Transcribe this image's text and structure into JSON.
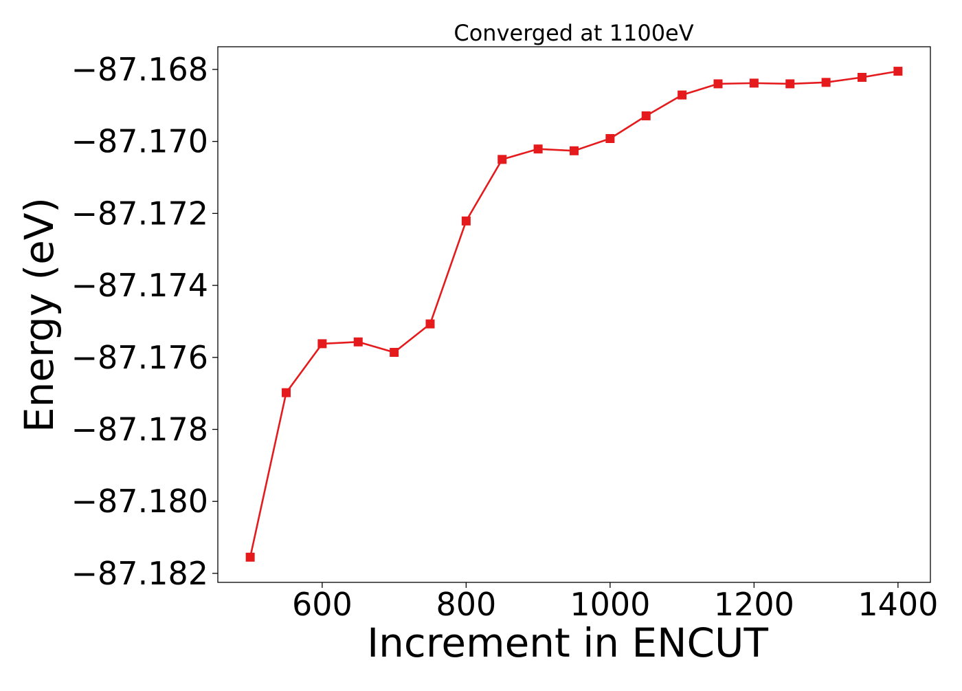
{
  "chart_data": {
    "type": "line",
    "title": "Converged at 1100eV",
    "xlabel": "Increment in ENCUT",
    "ylabel": "Energy (eV)",
    "x": [
      500,
      550,
      600,
      650,
      700,
      750,
      800,
      850,
      900,
      950,
      1000,
      1050,
      1100,
      1150,
      1200,
      1250,
      1300,
      1350,
      1400
    ],
    "series": [
      {
        "values": [
          -87.18155,
          -87.17698,
          -87.17562,
          -87.17557,
          -87.17586,
          -87.17507,
          -87.17221,
          -87.1705,
          -87.17021,
          -87.17026,
          -87.16992,
          -87.16929,
          -87.16871,
          -87.1684,
          -87.16838,
          -87.1684,
          -87.16836,
          -87.16822,
          -87.16805
        ],
        "color": "#e41a1c",
        "marker": "square"
      }
    ],
    "xlim": [
      455,
      1445
    ],
    "ylim": [
      -87.18225,
      -87.16737
    ],
    "xticks": [
      600,
      800,
      1000,
      1200,
      1400
    ],
    "xtick_labels": [
      "600",
      "800",
      "1000",
      "1200",
      "1400"
    ],
    "yticks": [
      -87.168,
      -87.17,
      -87.172,
      -87.174,
      -87.176,
      -87.178,
      -87.18,
      -87.182
    ],
    "ytick_labels": [
      "−87.168",
      "−87.170",
      "−87.172",
      "−87.174",
      "−87.176",
      "−87.178",
      "−87.180",
      "−87.182"
    ],
    "grid": false,
    "legend": "none"
  }
}
